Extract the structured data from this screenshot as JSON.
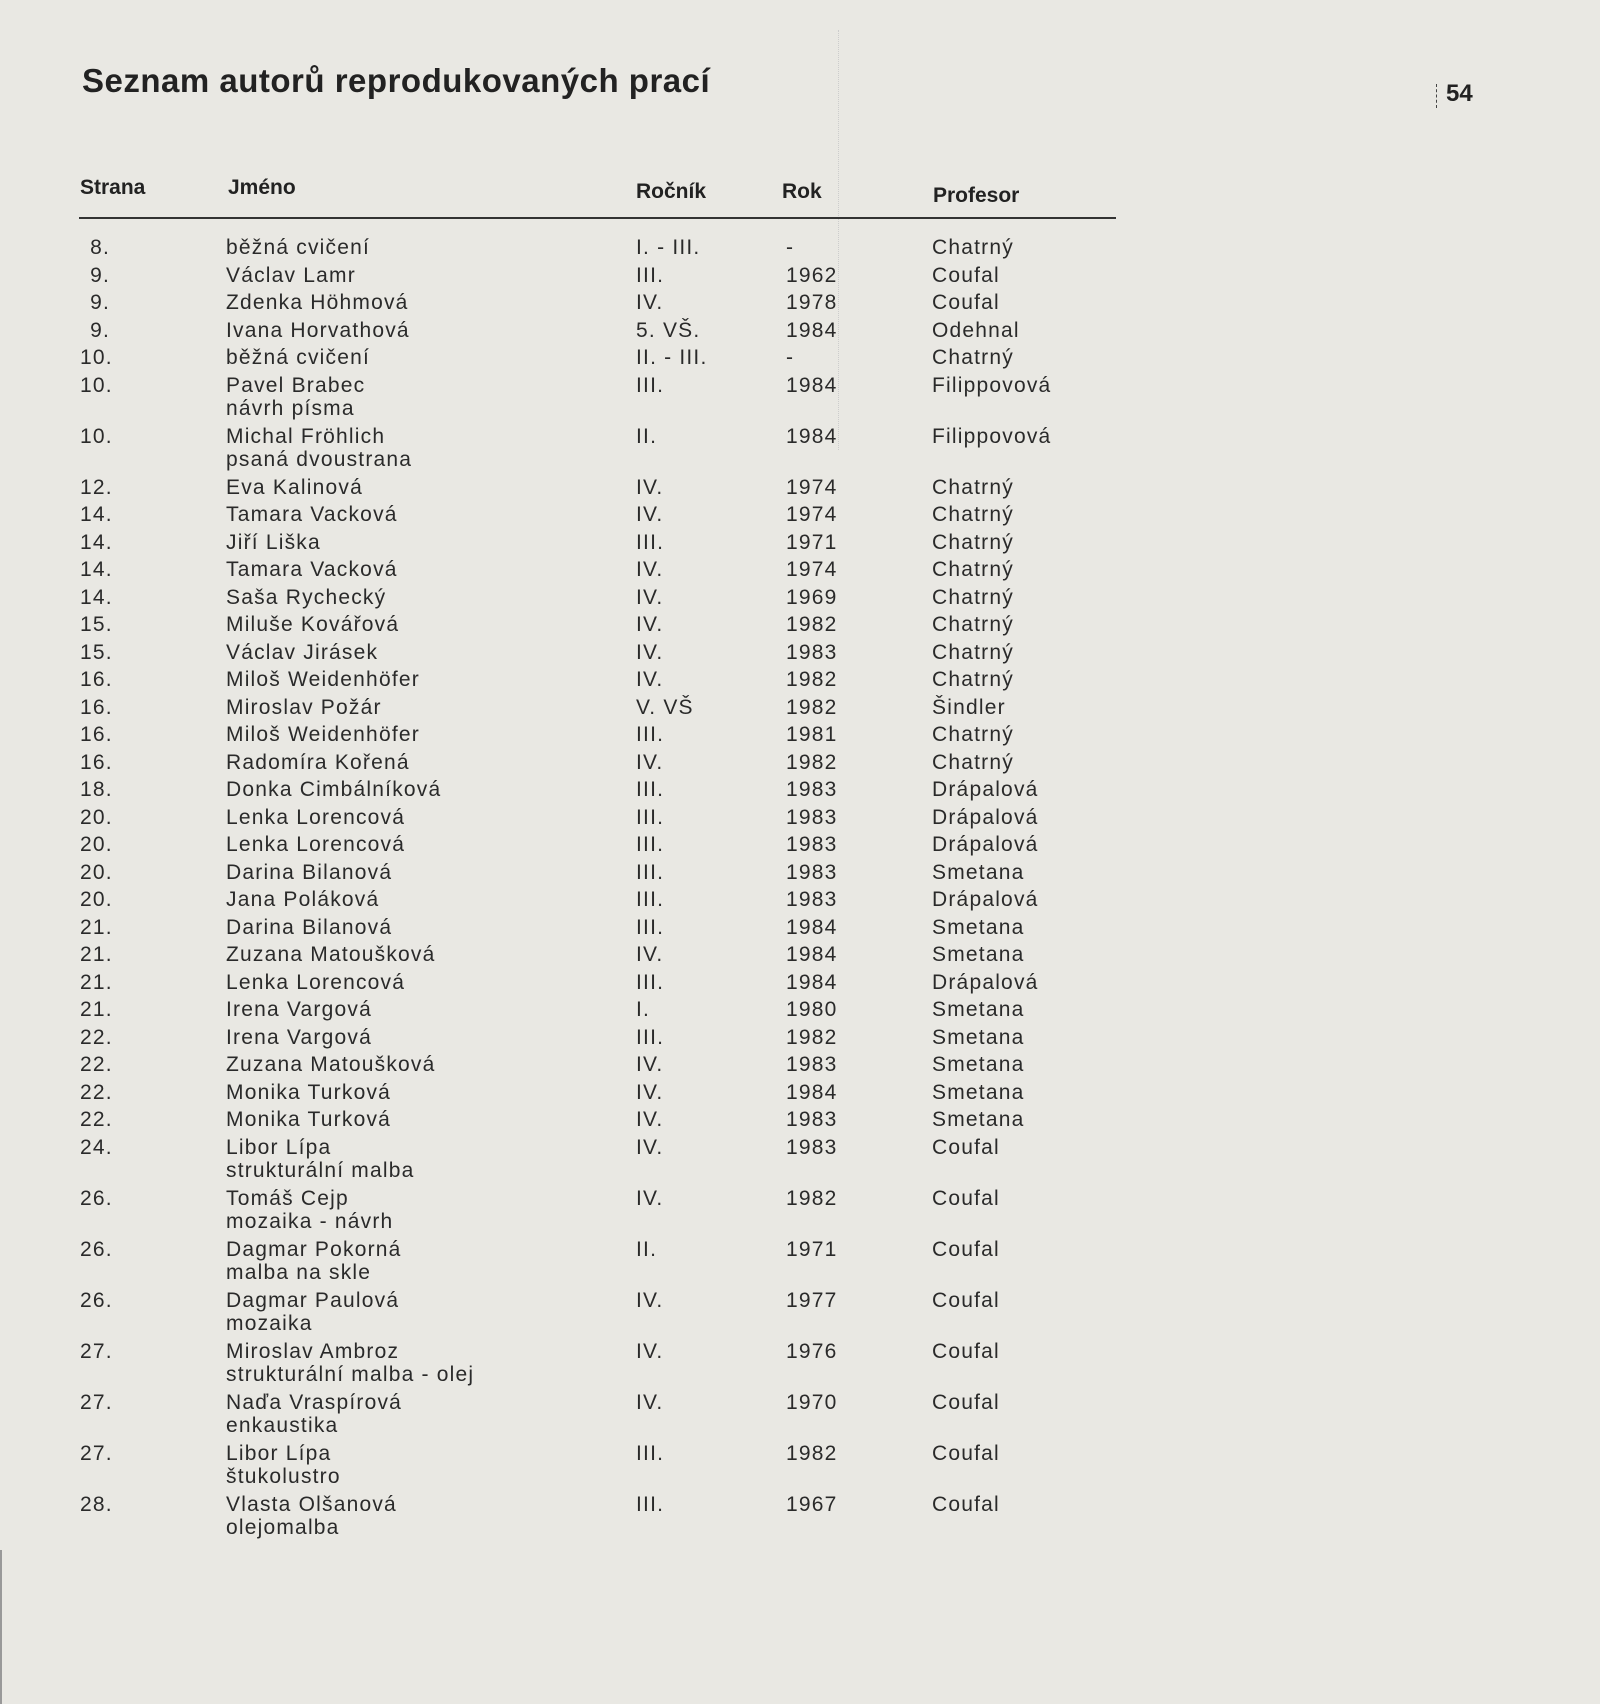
{
  "title": "Seznam autorů reprodukovaných prací",
  "page_number": "54",
  "headers": {
    "page": "Strana",
    "name": "Jméno",
    "year_of_study": "Ročník",
    "year": "Rok",
    "professor": "Profesor"
  },
  "rows": [
    {
      "page": "8.",
      "name": "běžná cvičení",
      "note": "",
      "grade": "I. - III.",
      "year": "-",
      "prof": "Chatrný"
    },
    {
      "page": "9.",
      "name": "Václav Lamr",
      "note": "",
      "grade": "III.",
      "year": "1962",
      "prof": "Coufal"
    },
    {
      "page": "9.",
      "name": "Zdenka Höhmová",
      "note": "",
      "grade": "IV.",
      "year": "1978",
      "prof": "Coufal"
    },
    {
      "page": "9.",
      "name": "Ivana Horvathová",
      "note": "",
      "grade": "5. VŠ.",
      "year": "1984",
      "prof": "Odehnal"
    },
    {
      "page": "10.",
      "name": "běžná cvičení",
      "note": "",
      "grade": "II. - III.",
      "year": "-",
      "prof": "Chatrný"
    },
    {
      "page": "10.",
      "name": "Pavel Brabec",
      "note": "návrh písma",
      "grade": "III.",
      "year": "1984",
      "prof": "Filippovová"
    },
    {
      "page": "10.",
      "name": "Michal Fröhlich",
      "note": "psaná dvoustrana",
      "grade": "II.",
      "year": "1984",
      "prof": "Filippovová"
    },
    {
      "page": "12.",
      "name": "Eva Kalinová",
      "note": "",
      "grade": "IV.",
      "year": "1974",
      "prof": "Chatrný"
    },
    {
      "page": "14.",
      "name": "Tamara Vacková",
      "note": "",
      "grade": "IV.",
      "year": "1974",
      "prof": "Chatrný"
    },
    {
      "page": "14.",
      "name": "Jiří Liška",
      "note": "",
      "grade": "III.",
      "year": "1971",
      "prof": "Chatrný"
    },
    {
      "page": "14.",
      "name": "Tamara Vacková",
      "note": "",
      "grade": "IV.",
      "year": "1974",
      "prof": "Chatrný"
    },
    {
      "page": "14.",
      "name": "Saša Rychecký",
      "note": "",
      "grade": "IV.",
      "year": "1969",
      "prof": "Chatrný"
    },
    {
      "page": "15.",
      "name": "Miluše Kovářová",
      "note": "",
      "grade": "IV.",
      "year": "1982",
      "prof": "Chatrný"
    },
    {
      "page": "15.",
      "name": "Václav Jirásek",
      "note": "",
      "grade": "IV.",
      "year": "1983",
      "prof": "Chatrný"
    },
    {
      "page": "16.",
      "name": "Miloš Weidenhöfer",
      "note": "",
      "grade": "IV.",
      "year": "1982",
      "prof": "Chatrný"
    },
    {
      "page": "16.",
      "name": "Miroslav Požár",
      "note": "",
      "grade": "V. VŠ",
      "year": "1982",
      "prof": "Šindler"
    },
    {
      "page": "16.",
      "name": "Miloš Weidenhöfer",
      "note": "",
      "grade": "III.",
      "year": "1981",
      "prof": "Chatrný"
    },
    {
      "page": "16.",
      "name": "Radomíra Kořená",
      "note": "",
      "grade": "IV.",
      "year": "1982",
      "prof": "Chatrný"
    },
    {
      "page": "18.",
      "name": "Donka Cimbálníková",
      "note": "",
      "grade": "III.",
      "year": "1983",
      "prof": "Drápalová"
    },
    {
      "page": "20.",
      "name": "Lenka Lorencová",
      "note": "",
      "grade": "III.",
      "year": "1983",
      "prof": "Drápalová"
    },
    {
      "page": "20.",
      "name": "Lenka Lorencová",
      "note": "",
      "grade": "III.",
      "year": "1983",
      "prof": "Drápalová"
    },
    {
      "page": "20.",
      "name": "Darina Bilanová",
      "note": "",
      "grade": "III.",
      "year": "1983",
      "prof": "Smetana"
    },
    {
      "page": "20.",
      "name": "Jana Poláková",
      "note": "",
      "grade": "III.",
      "year": "1983",
      "prof": "Drápalová"
    },
    {
      "page": "21.",
      "name": "Darina Bilanová",
      "note": "",
      "grade": "III.",
      "year": "1984",
      "prof": "Smetana"
    },
    {
      "page": "21.",
      "name": "Zuzana Matoušková",
      "note": "",
      "grade": "IV.",
      "year": "1984",
      "prof": "Smetana"
    },
    {
      "page": "21.",
      "name": "Lenka Lorencová",
      "note": "",
      "grade": "III.",
      "year": "1984",
      "prof": "Drápalová"
    },
    {
      "page": "21.",
      "name": "Irena Vargová",
      "note": "",
      "grade": "I.",
      "year": "1980",
      "prof": "Smetana"
    },
    {
      "page": "22.",
      "name": "Irena Vargová",
      "note": "",
      "grade": "III.",
      "year": "1982",
      "prof": "Smetana"
    },
    {
      "page": "22.",
      "name": "Zuzana Matoušková",
      "note": "",
      "grade": "IV.",
      "year": "1983",
      "prof": "Smetana"
    },
    {
      "page": "22.",
      "name": "Monika Turková",
      "note": "",
      "grade": "IV.",
      "year": "1984",
      "prof": "Smetana"
    },
    {
      "page": "22.",
      "name": "Monika Turková",
      "note": "",
      "grade": "IV.",
      "year": "1983",
      "prof": "Smetana"
    },
    {
      "page": "24.",
      "name": "Libor Lípa",
      "note": "strukturální malba",
      "grade": "IV.",
      "year": "1983",
      "prof": "Coufal"
    },
    {
      "page": "26.",
      "name": "Tomáš Cejp",
      "note": "mozaika  -  návrh",
      "grade": "IV.",
      "year": "1982",
      "prof": "Coufal"
    },
    {
      "page": "26.",
      "name": "Dagmar Pokorná",
      "note": "malba na skle",
      "grade": "II.",
      "year": "1971",
      "prof": "Coufal"
    },
    {
      "page": "26.",
      "name": "Dagmar Paulová",
      "note": "mozaika",
      "grade": "IV.",
      "year": "1977",
      "prof": "Coufal"
    },
    {
      "page": "27.",
      "name": "Miroslav Ambroz",
      "note": "strukturální malba - olej",
      "grade": "IV.",
      "year": "1976",
      "prof": "Coufal"
    },
    {
      "page": "27.",
      "name": "Naďa Vraspírová",
      "note": "enkaustika",
      "grade": "IV.",
      "year": "1970",
      "prof": "Coufal"
    },
    {
      "page": "27.",
      "name": "Libor Lípa",
      "note": "štukolustro",
      "grade": "III.",
      "year": "1982",
      "prof": "Coufal"
    },
    {
      "page": "28.",
      "name": "Vlasta Olšanová",
      "note": "olejomalba",
      "grade": "III.",
      "year": "1967",
      "prof": "Coufal"
    }
  ]
}
